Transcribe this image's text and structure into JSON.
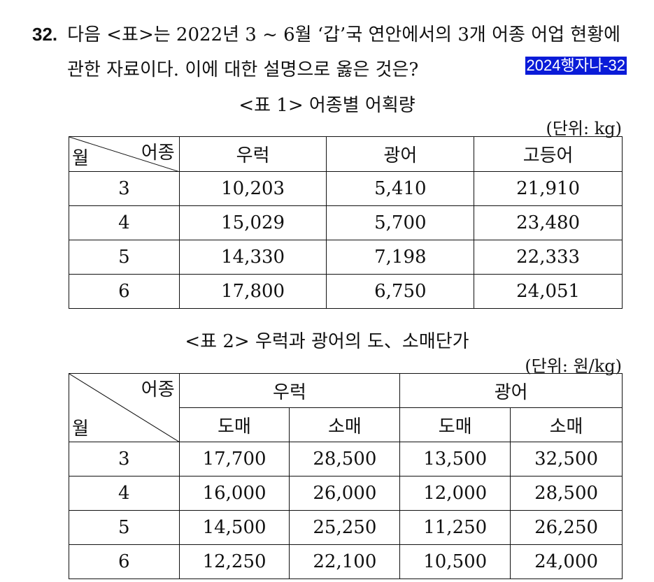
{
  "question": {
    "number": "32.",
    "line1": "다음 <표>는 2022년 3 ~ 6월 ‘갑’국 연안에서의 3개 어종 어업 현황에",
    "line2": "관한 자료이다. 이에 대한 설명으로 옳은 것은?",
    "tag": "2024행자나-32"
  },
  "table1": {
    "caption": "<표 1> 어종별 어획량",
    "unit": "(단위: kg)",
    "corner_top": "어종",
    "corner_bottom": "월",
    "headers": [
      "우럭",
      "광어",
      "고등어"
    ],
    "rows": [
      {
        "month": "3",
        "values": [
          "10,203",
          "5,410",
          "21,910"
        ]
      },
      {
        "month": "4",
        "values": [
          "15,029",
          "5,700",
          "23,480"
        ]
      },
      {
        "month": "5",
        "values": [
          "14,330",
          "7,198",
          "22,333"
        ]
      },
      {
        "month": "6",
        "values": [
          "17,800",
          "6,750",
          "24,051"
        ]
      }
    ]
  },
  "table2": {
    "caption": "<표 2> 우럭과 광어의 도、소매단가",
    "unit": "(단위: 원/kg)",
    "corner_top": "어종",
    "corner_bottom": "월",
    "groups": [
      "우럭",
      "광어"
    ],
    "subheaders": [
      "도매",
      "소매",
      "도매",
      "소매"
    ],
    "rows": [
      {
        "month": "3",
        "values": [
          "17,700",
          "28,500",
          "13,500",
          "32,500"
        ]
      },
      {
        "month": "4",
        "values": [
          "16,000",
          "26,000",
          "12,000",
          "28,500"
        ]
      },
      {
        "month": "5",
        "values": [
          "14,500",
          "25,250",
          "11,250",
          "26,250"
        ]
      },
      {
        "month": "6",
        "values": [
          "12,250",
          "22,100",
          "10,500",
          "24,000"
        ]
      }
    ]
  }
}
